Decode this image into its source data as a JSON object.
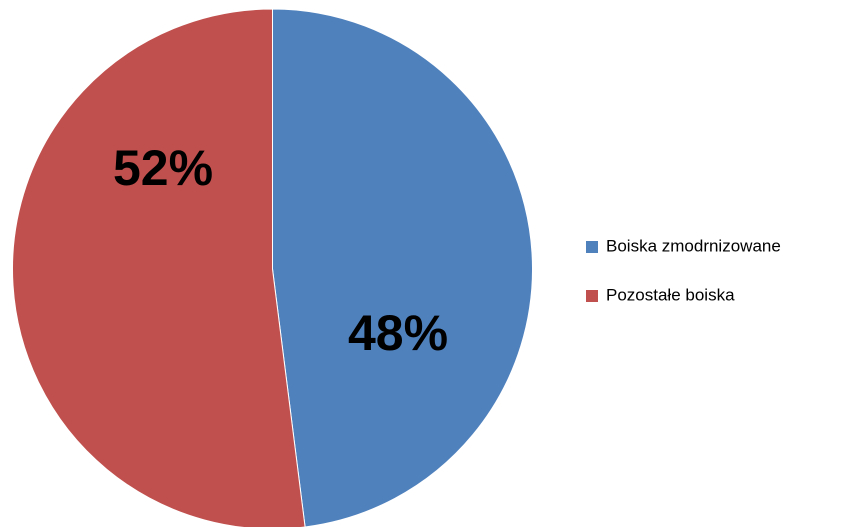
{
  "chart_data": {
    "type": "pie",
    "categories": [
      "Boiska zmodrnizowane",
      "Pozostałe boiska"
    ],
    "values": [
      48,
      52
    ],
    "value_labels": [
      "48%",
      "52%"
    ],
    "colors": [
      "#4f81bd",
      "#c0504d"
    ],
    "legend": "right"
  }
}
